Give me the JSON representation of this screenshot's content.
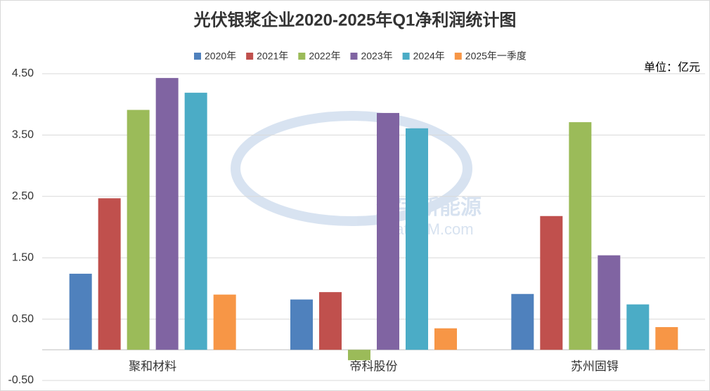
{
  "chart_data": {
    "type": "bar",
    "title": "光伏银浆企业2020-2025年Q1净利润统计图",
    "unit_label": "单位：亿元",
    "watermark": {
      "cn": "数字新能源",
      "en": "DataBM.com"
    },
    "categories": [
      "聚和材料",
      "帝科股份",
      "苏州固锝"
    ],
    "series": [
      {
        "name": "2020年",
        "color": "#4f81bd",
        "values": [
          1.24,
          0.82,
          0.91
        ]
      },
      {
        "name": "2021年",
        "color": "#c0504d",
        "values": [
          2.47,
          0.94,
          2.18
        ]
      },
      {
        "name": "2022年",
        "color": "#9bbb59",
        "values": [
          3.91,
          -0.17,
          3.71
        ]
      },
      {
        "name": "2023年",
        "color": "#8064a2",
        "values": [
          4.43,
          3.86,
          1.54
        ]
      },
      {
        "name": "2024年",
        "color": "#4bacc6",
        "values": [
          4.19,
          3.61,
          0.74
        ]
      },
      {
        "name": "2025年一季度",
        "color": "#f79646",
        "values": [
          0.9,
          0.35,
          0.37
        ]
      }
    ],
    "ylim": [
      -0.5,
      4.5
    ],
    "yticks": [
      {
        "value": -0.5,
        "label": "-0.50"
      },
      {
        "value": 0.5,
        "label": "0.50"
      },
      {
        "value": 1.5,
        "label": "1.50"
      },
      {
        "value": 2.5,
        "label": "2.50"
      },
      {
        "value": 3.5,
        "label": "3.50"
      },
      {
        "value": 4.5,
        "label": "4.50"
      }
    ],
    "grid": true
  }
}
